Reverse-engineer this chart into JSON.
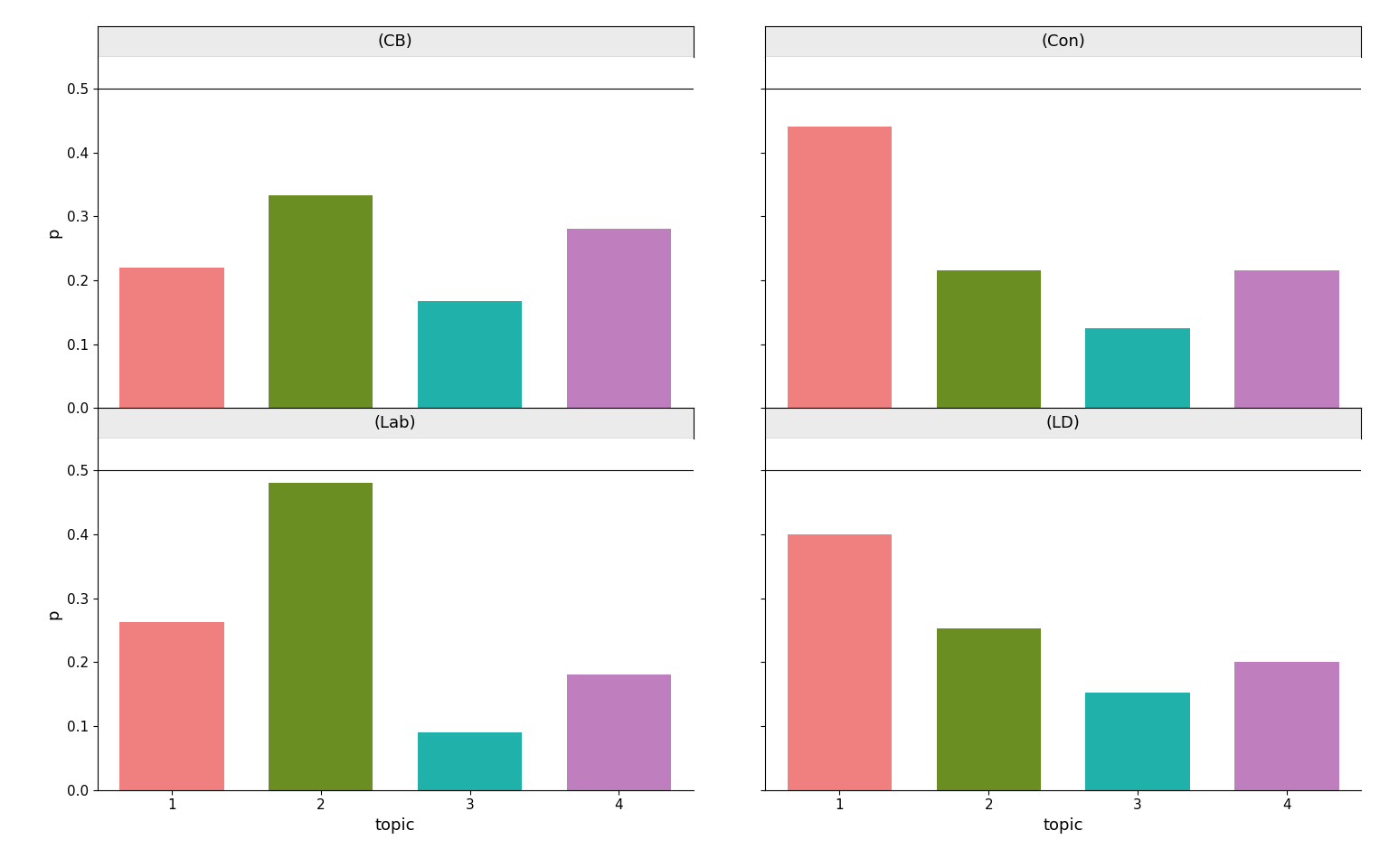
{
  "panels": [
    {
      "title": "(CB)",
      "values": [
        0.22,
        0.333,
        0.167,
        0.28
      ],
      "row": 0,
      "col": 0
    },
    {
      "title": "(Con)",
      "values": [
        0.44,
        0.215,
        0.125,
        0.215
      ],
      "row": 0,
      "col": 1
    },
    {
      "title": "(Lab)",
      "values": [
        0.263,
        0.48,
        0.09,
        0.18
      ],
      "row": 1,
      "col": 0
    },
    {
      "title": "(LD)",
      "values": [
        0.4,
        0.253,
        0.152,
        0.2
      ],
      "row": 1,
      "col": 1
    }
  ],
  "topics": [
    1,
    2,
    3,
    4
  ],
  "bar_colors": [
    "#F08080",
    "#6B8E23",
    "#20B2AA",
    "#BF7FBF"
  ],
  "ylim": [
    0,
    0.55
  ],
  "yticks": [
    0.0,
    0.1,
    0.2,
    0.3,
    0.4,
    0.5
  ],
  "xlabel": "topic",
  "ylabel": "p",
  "title_fontsize": 13,
  "axis_fontsize": 13,
  "tick_fontsize": 11,
  "background_color": "#FFFFFF",
  "panel_header_color": "#EBEBEB",
  "bar_width": 0.7
}
